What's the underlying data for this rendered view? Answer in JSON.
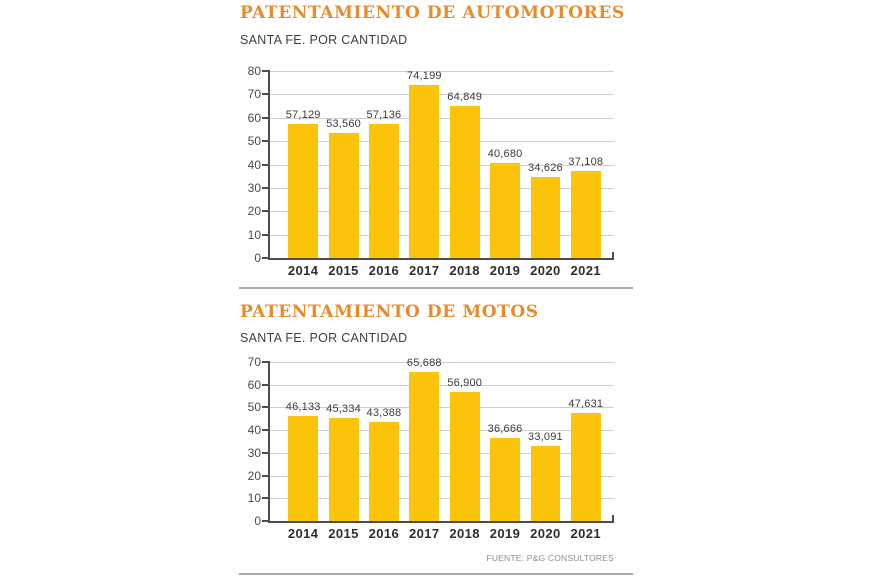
{
  "page": {
    "background": "#ffffff"
  },
  "colors": {
    "bar": "#FCC30B",
    "title": "#E78B2D",
    "grid": "#CDCDCD",
    "axis": "#4D4D4D",
    "divider": "#ABABAB",
    "value_text": "#3C3C3C"
  },
  "source": {
    "label": "FUENTE: P&G CONSULTORES"
  },
  "chart_data": [
    {
      "type": "bar",
      "title": "PATENTAMIENTO DE AUTOMOTORES",
      "subtitle": "SANTA FE. POR CANTIDAD",
      "xlabel": "",
      "ylabel": "",
      "categories": [
        "2014",
        "2015",
        "2016",
        "2017",
        "2018",
        "2019",
        "2020",
        "2021"
      ],
      "values": [
        57129,
        53560,
        57136,
        74199,
        64849,
        40680,
        34626,
        37108
      ],
      "value_labels": [
        "57,129",
        "53,560",
        "57,136",
        "74,199",
        "64,849",
        "40,680",
        "34,626",
        "37,108"
      ],
      "unit_divisor": 1000,
      "ylim": [
        0,
        80
      ],
      "yticks": [
        0,
        10,
        20,
        30,
        40,
        50,
        60,
        70,
        80
      ],
      "grid": true,
      "legend_position": "none"
    },
    {
      "type": "bar",
      "title": "PATENTAMIENTO DE MOTOS",
      "subtitle": "SANTA FE. POR CANTIDAD",
      "xlabel": "",
      "ylabel": "",
      "categories": [
        "2014",
        "2015",
        "2016",
        "2017",
        "2018",
        "2019",
        "2020",
        "2021"
      ],
      "values": [
        46133,
        45334,
        43388,
        65688,
        56900,
        36666,
        33091,
        47631
      ],
      "value_labels": [
        "46,133",
        "45,334",
        "43,388",
        "65,688",
        "56,900",
        "36,666",
        "33,091",
        "47,631"
      ],
      "unit_divisor": 1000,
      "ylim": [
        0,
        70
      ],
      "yticks": [
        0,
        10,
        20,
        30,
        40,
        50,
        60,
        70
      ],
      "grid": true,
      "legend_position": "none"
    }
  ]
}
